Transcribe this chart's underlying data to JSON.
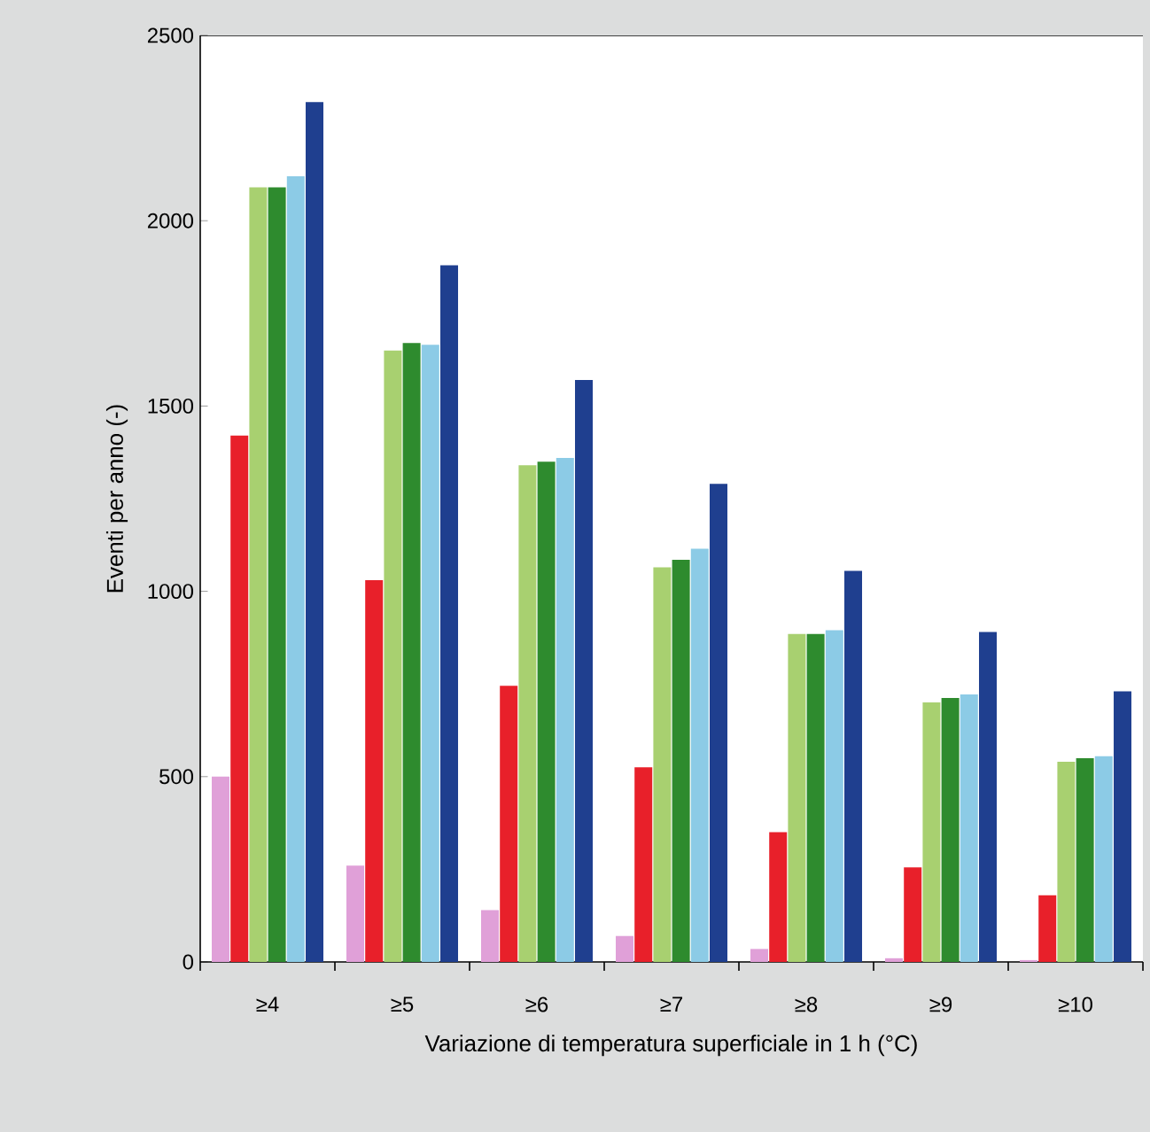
{
  "chart_data": {
    "type": "bar",
    "xlabel": "Variazione di temperatura superficiale in 1 h (°C)",
    "ylabel": "Eventi per anno (-)",
    "categories": [
      "≥4",
      "≥5",
      "≥6",
      "≥7",
      "≥8",
      "≥9",
      "≥10"
    ],
    "series": [
      {
        "color": "#e0a0d8",
        "values": [
          500,
          260,
          140,
          70,
          35,
          10,
          5
        ]
      },
      {
        "color": "#e8202a",
        "values": [
          1420,
          1030,
          745,
          525,
          350,
          255,
          180
        ]
      },
      {
        "color": "#a8d070",
        "values": [
          2090,
          1650,
          1340,
          1065,
          885,
          700,
          540
        ]
      },
      {
        "color": "#2e8b2e",
        "values": [
          2090,
          1670,
          1350,
          1085,
          885,
          712,
          550
        ]
      },
      {
        "color": "#8ccbe6",
        "values": [
          2120,
          1665,
          1360,
          1115,
          895,
          722,
          555
        ]
      },
      {
        "color": "#1f3f8f",
        "values": [
          2320,
          1880,
          1570,
          1290,
          1055,
          890,
          730
        ]
      }
    ],
    "ylim": [
      0,
      2500
    ],
    "yticks": [
      0,
      500,
      1000,
      1500,
      2000,
      2500
    ],
    "grid": false
  }
}
